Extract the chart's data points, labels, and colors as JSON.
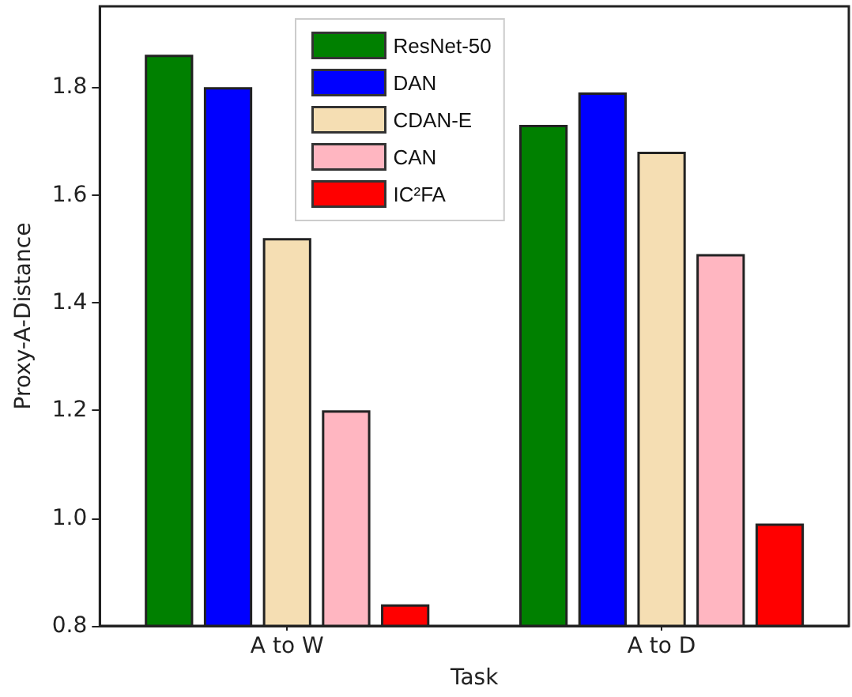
{
  "chart_data": {
    "type": "bar",
    "xlabel": "Task",
    "ylabel": "Proxy-A-Distance",
    "categories": [
      "A to W",
      "A to D"
    ],
    "series": [
      {
        "name": "ResNet-50",
        "color": "#008000",
        "values": [
          1.86,
          1.73
        ]
      },
      {
        "name": "DAN",
        "color": "#0000ff",
        "values": [
          1.8,
          1.79
        ]
      },
      {
        "name": "CDAN-E",
        "color": "#f5deb3",
        "values": [
          1.52,
          1.68
        ]
      },
      {
        "name": "CAN",
        "color": "#ffb6c1",
        "values": [
          1.2,
          1.49
        ]
      },
      {
        "name": "IC²FA",
        "color": "#ff0000",
        "values": [
          0.84,
          0.99
        ]
      }
    ],
    "ylim": [
      0.8,
      1.95
    ],
    "yticks": [
      {
        "value": 0.8,
        "label": "0.8"
      },
      {
        "value": 1.0,
        "label": "1.0"
      },
      {
        "value": 1.2,
        "label": "1.2"
      },
      {
        "value": 1.4,
        "label": "1.4"
      },
      {
        "value": 1.6,
        "label": "1.6"
      },
      {
        "value": 1.8,
        "label": "1.8"
      }
    ],
    "grid": false,
    "legend": "top"
  }
}
